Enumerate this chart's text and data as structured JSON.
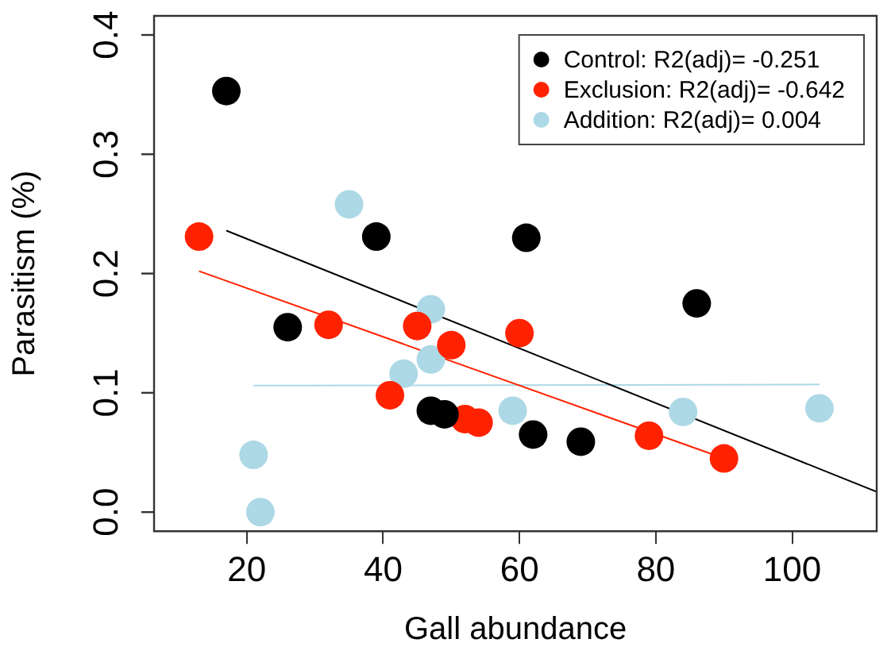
{
  "chart_data": {
    "type": "scatter",
    "xlabel": "Gall abundance",
    "ylabel": "Parasitism (%)",
    "xlim": [
      6.4,
      112.4
    ],
    "ylim": [
      -0.016,
      0.416
    ],
    "xticks": [
      20,
      40,
      60,
      80,
      100
    ],
    "yticks": [
      {
        "value": 0,
        "label": "0.0"
      },
      0.1,
      0.2,
      0.3,
      0.4
    ],
    "marker": "circle",
    "legend": "top right",
    "grid": false,
    "series": [
      {
        "name": "Control: R2(adj)= -0.251",
        "color": "#000000",
        "x": [
          17,
          26,
          39,
          47,
          49,
          61,
          62,
          69,
          86
        ],
        "values": [
          0.353,
          0.155,
          0.231,
          0.085,
          0.082,
          0.23,
          0.065,
          0.059,
          0.175
        ]
      },
      {
        "name": "Exclusion: R2(adj)= -0.642",
        "color": "#ff2200",
        "x": [
          13,
          32,
          41,
          45,
          50,
          52,
          54,
          60,
          79,
          90
        ],
        "values": [
          0.231,
          0.157,
          0.098,
          0.156,
          0.14,
          0.078,
          0.075,
          0.15,
          0.064,
          0.045
        ]
      },
      {
        "name": "Addition: R2(adj)= 0.004",
        "color": "#add8e6",
        "x": [
          21,
          22,
          35,
          43,
          47,
          47,
          59,
          84,
          104
        ],
        "values": [
          0.048,
          0.0,
          0.258,
          0.116,
          0.17,
          0.128,
          0.085,
          0.084,
          0.087
        ]
      },
      {
        "type": "line",
        "marker": "none",
        "color": "#000000",
        "x": [
          17,
          112.4
        ],
        "values": [
          0.236,
          0.017
        ]
      },
      {
        "type": "line",
        "marker": "none",
        "color": "#ff2200",
        "x": [
          13,
          90
        ],
        "values": [
          0.202,
          0.045
        ]
      },
      {
        "type": "line",
        "marker": "none",
        "color": "#add8e6",
        "x": [
          21,
          104
        ],
        "values": [
          0.106,
          0.107
        ]
      }
    ]
  }
}
